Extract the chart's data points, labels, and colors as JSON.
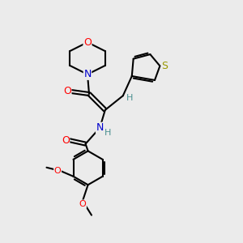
{
  "background_color": "#ebebeb",
  "atom_colors": {
    "O": "#ff0000",
    "N": "#0000cc",
    "S": "#999900",
    "H_teal": "#4a9090",
    "C": "#000000"
  },
  "figsize": [
    3.0,
    3.0
  ],
  "dpi": 100
}
